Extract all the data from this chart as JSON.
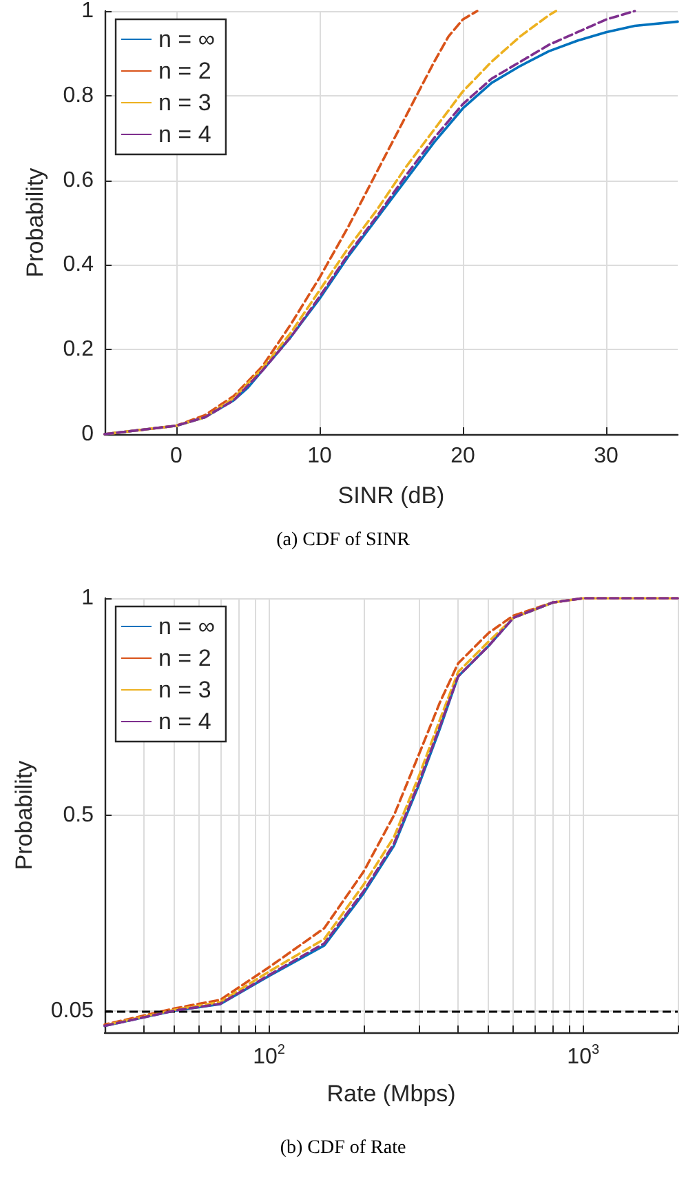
{
  "chart_data": [
    {
      "type": "line",
      "title": "(a) CDF of SINR",
      "xlabel": "SINR (dB)",
      "ylabel": "Probability",
      "xlim": [
        -5,
        35
      ],
      "xticks": [
        0,
        10,
        20,
        30
      ],
      "ylim": [
        0,
        1
      ],
      "yticks": [
        0,
        0.2,
        0.4,
        0.6,
        0.8,
        1
      ],
      "grid": true,
      "legend": "top left",
      "series": [
        {
          "name": "n = ∞",
          "color": "#0072bd",
          "line_style": "solid",
          "x": [
            -5,
            0,
            2,
            4,
            5,
            6,
            8,
            10,
            12,
            14,
            16,
            18,
            20,
            22,
            24,
            26,
            28,
            30,
            32,
            35
          ],
          "values": [
            0,
            0.02,
            0.04,
            0.08,
            0.11,
            0.15,
            0.23,
            0.32,
            0.42,
            0.51,
            0.6,
            0.69,
            0.77,
            0.83,
            0.87,
            0.905,
            0.93,
            0.95,
            0.965,
            0.975
          ]
        },
        {
          "name": "n = 2",
          "color": "#d95319",
          "line_style": "dashed",
          "x": [
            -5,
            0,
            2,
            4,
            6,
            8,
            10,
            12,
            14,
            16,
            18,
            19,
            20,
            21
          ],
          "values": [
            0,
            0.02,
            0.045,
            0.09,
            0.16,
            0.26,
            0.37,
            0.49,
            0.62,
            0.75,
            0.88,
            0.94,
            0.98,
            1
          ]
        },
        {
          "name": "n = 3",
          "color": "#edb120",
          "line_style": "dashed",
          "x": [
            -5,
            0,
            2,
            4,
            6,
            8,
            10,
            12,
            14,
            16,
            18,
            20,
            22,
            24,
            26,
            26.5
          ],
          "values": [
            0,
            0.02,
            0.04,
            0.085,
            0.155,
            0.24,
            0.34,
            0.44,
            0.53,
            0.63,
            0.72,
            0.81,
            0.88,
            0.94,
            0.99,
            1
          ]
        },
        {
          "name": "n = 4",
          "color": "#7e2f8e",
          "line_style": "dashed",
          "x": [
            -5,
            0,
            2,
            4,
            6,
            8,
            10,
            12,
            14,
            16,
            18,
            20,
            22,
            24,
            26,
            28,
            30,
            32
          ],
          "values": [
            0,
            0.02,
            0.04,
            0.08,
            0.15,
            0.23,
            0.325,
            0.425,
            0.515,
            0.61,
            0.7,
            0.78,
            0.84,
            0.88,
            0.92,
            0.95,
            0.98,
            1
          ]
        }
      ]
    },
    {
      "type": "line",
      "title": "(b) CDF of Rate",
      "xlabel": "Rate (Mbps)",
      "ylabel": "Probability",
      "log": "x",
      "xlim": [
        30,
        2000
      ],
      "xticks": [
        {
          "value": 30,
          "label": null
        },
        {
          "value": 40,
          "label": null
        },
        {
          "value": 50,
          "label": null
        },
        {
          "value": 60,
          "label": null
        },
        {
          "value": 70,
          "label": null
        },
        {
          "value": 80,
          "label": null
        },
        {
          "value": 90,
          "label": null
        },
        {
          "value": 100,
          "label": "10$^{2}$"
        },
        {
          "value": 200,
          "label": null
        },
        {
          "value": 300,
          "label": null
        },
        {
          "value": 400,
          "label": null
        },
        {
          "value": 500,
          "label": null
        },
        {
          "value": 600,
          "label": null
        },
        {
          "value": 700,
          "label": null
        },
        {
          "value": 800,
          "label": null
        },
        {
          "value": 900,
          "label": null
        },
        {
          "value": 1000,
          "label": "10$^{3}$"
        },
        {
          "value": 2000,
          "label": null
        }
      ],
      "ylim": [
        0,
        1
      ],
      "yticks": [
        0.05,
        0.5,
        1
      ],
      "grid": true,
      "legend": "top left",
      "ref_lines": [
        {
          "axis": "y",
          "value": 0.05,
          "color": "#000000",
          "line_style": "dashed"
        }
      ],
      "series": [
        {
          "name": "n = ∞",
          "color": "#0072bd",
          "line_style": "solid",
          "x": [
            30,
            50,
            70,
            100,
            150,
            200,
            250,
            300,
            350,
            400,
            500,
            600,
            800
          ],
          "values": [
            0.015,
            0.05,
            0.065,
            0.13,
            0.2,
            0.32,
            0.43,
            0.57,
            0.7,
            0.82,
            0.89,
            0.955,
            0.99
          ]
        },
        {
          "name": "n = 2",
          "color": "#d95319",
          "line_style": "dashed",
          "x": [
            30,
            50,
            70,
            100,
            150,
            200,
            250,
            300,
            350,
            400,
            500,
            600,
            800,
            1000,
            2000
          ],
          "values": [
            0.018,
            0.055,
            0.075,
            0.15,
            0.24,
            0.37,
            0.5,
            0.64,
            0.76,
            0.85,
            0.92,
            0.96,
            0.99,
            1,
            1
          ]
        },
        {
          "name": "n = 3",
          "color": "#edb120",
          "line_style": "dashed",
          "x": [
            30,
            50,
            70,
            100,
            150,
            200,
            250,
            300,
            350,
            400,
            500,
            600,
            800,
            1000,
            2000
          ],
          "values": [
            0.016,
            0.052,
            0.07,
            0.14,
            0.215,
            0.34,
            0.45,
            0.59,
            0.72,
            0.83,
            0.9,
            0.955,
            0.99,
            1,
            1
          ]
        },
        {
          "name": "n = 4",
          "color": "#7e2f8e",
          "line_style": "dashed",
          "x": [
            30,
            50,
            70,
            100,
            150,
            200,
            250,
            300,
            350,
            400,
            500,
            600,
            800,
            1000,
            2000
          ],
          "values": [
            0.015,
            0.05,
            0.066,
            0.132,
            0.205,
            0.325,
            0.435,
            0.575,
            0.705,
            0.82,
            0.89,
            0.955,
            0.99,
            1,
            1
          ]
        }
      ]
    }
  ]
}
